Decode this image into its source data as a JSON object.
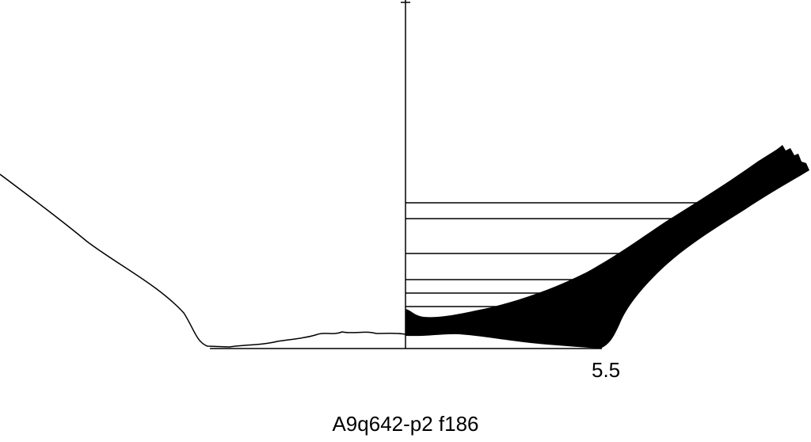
{
  "scale_label": "5.5",
  "caption": "A9q642-p2 f186"
}
